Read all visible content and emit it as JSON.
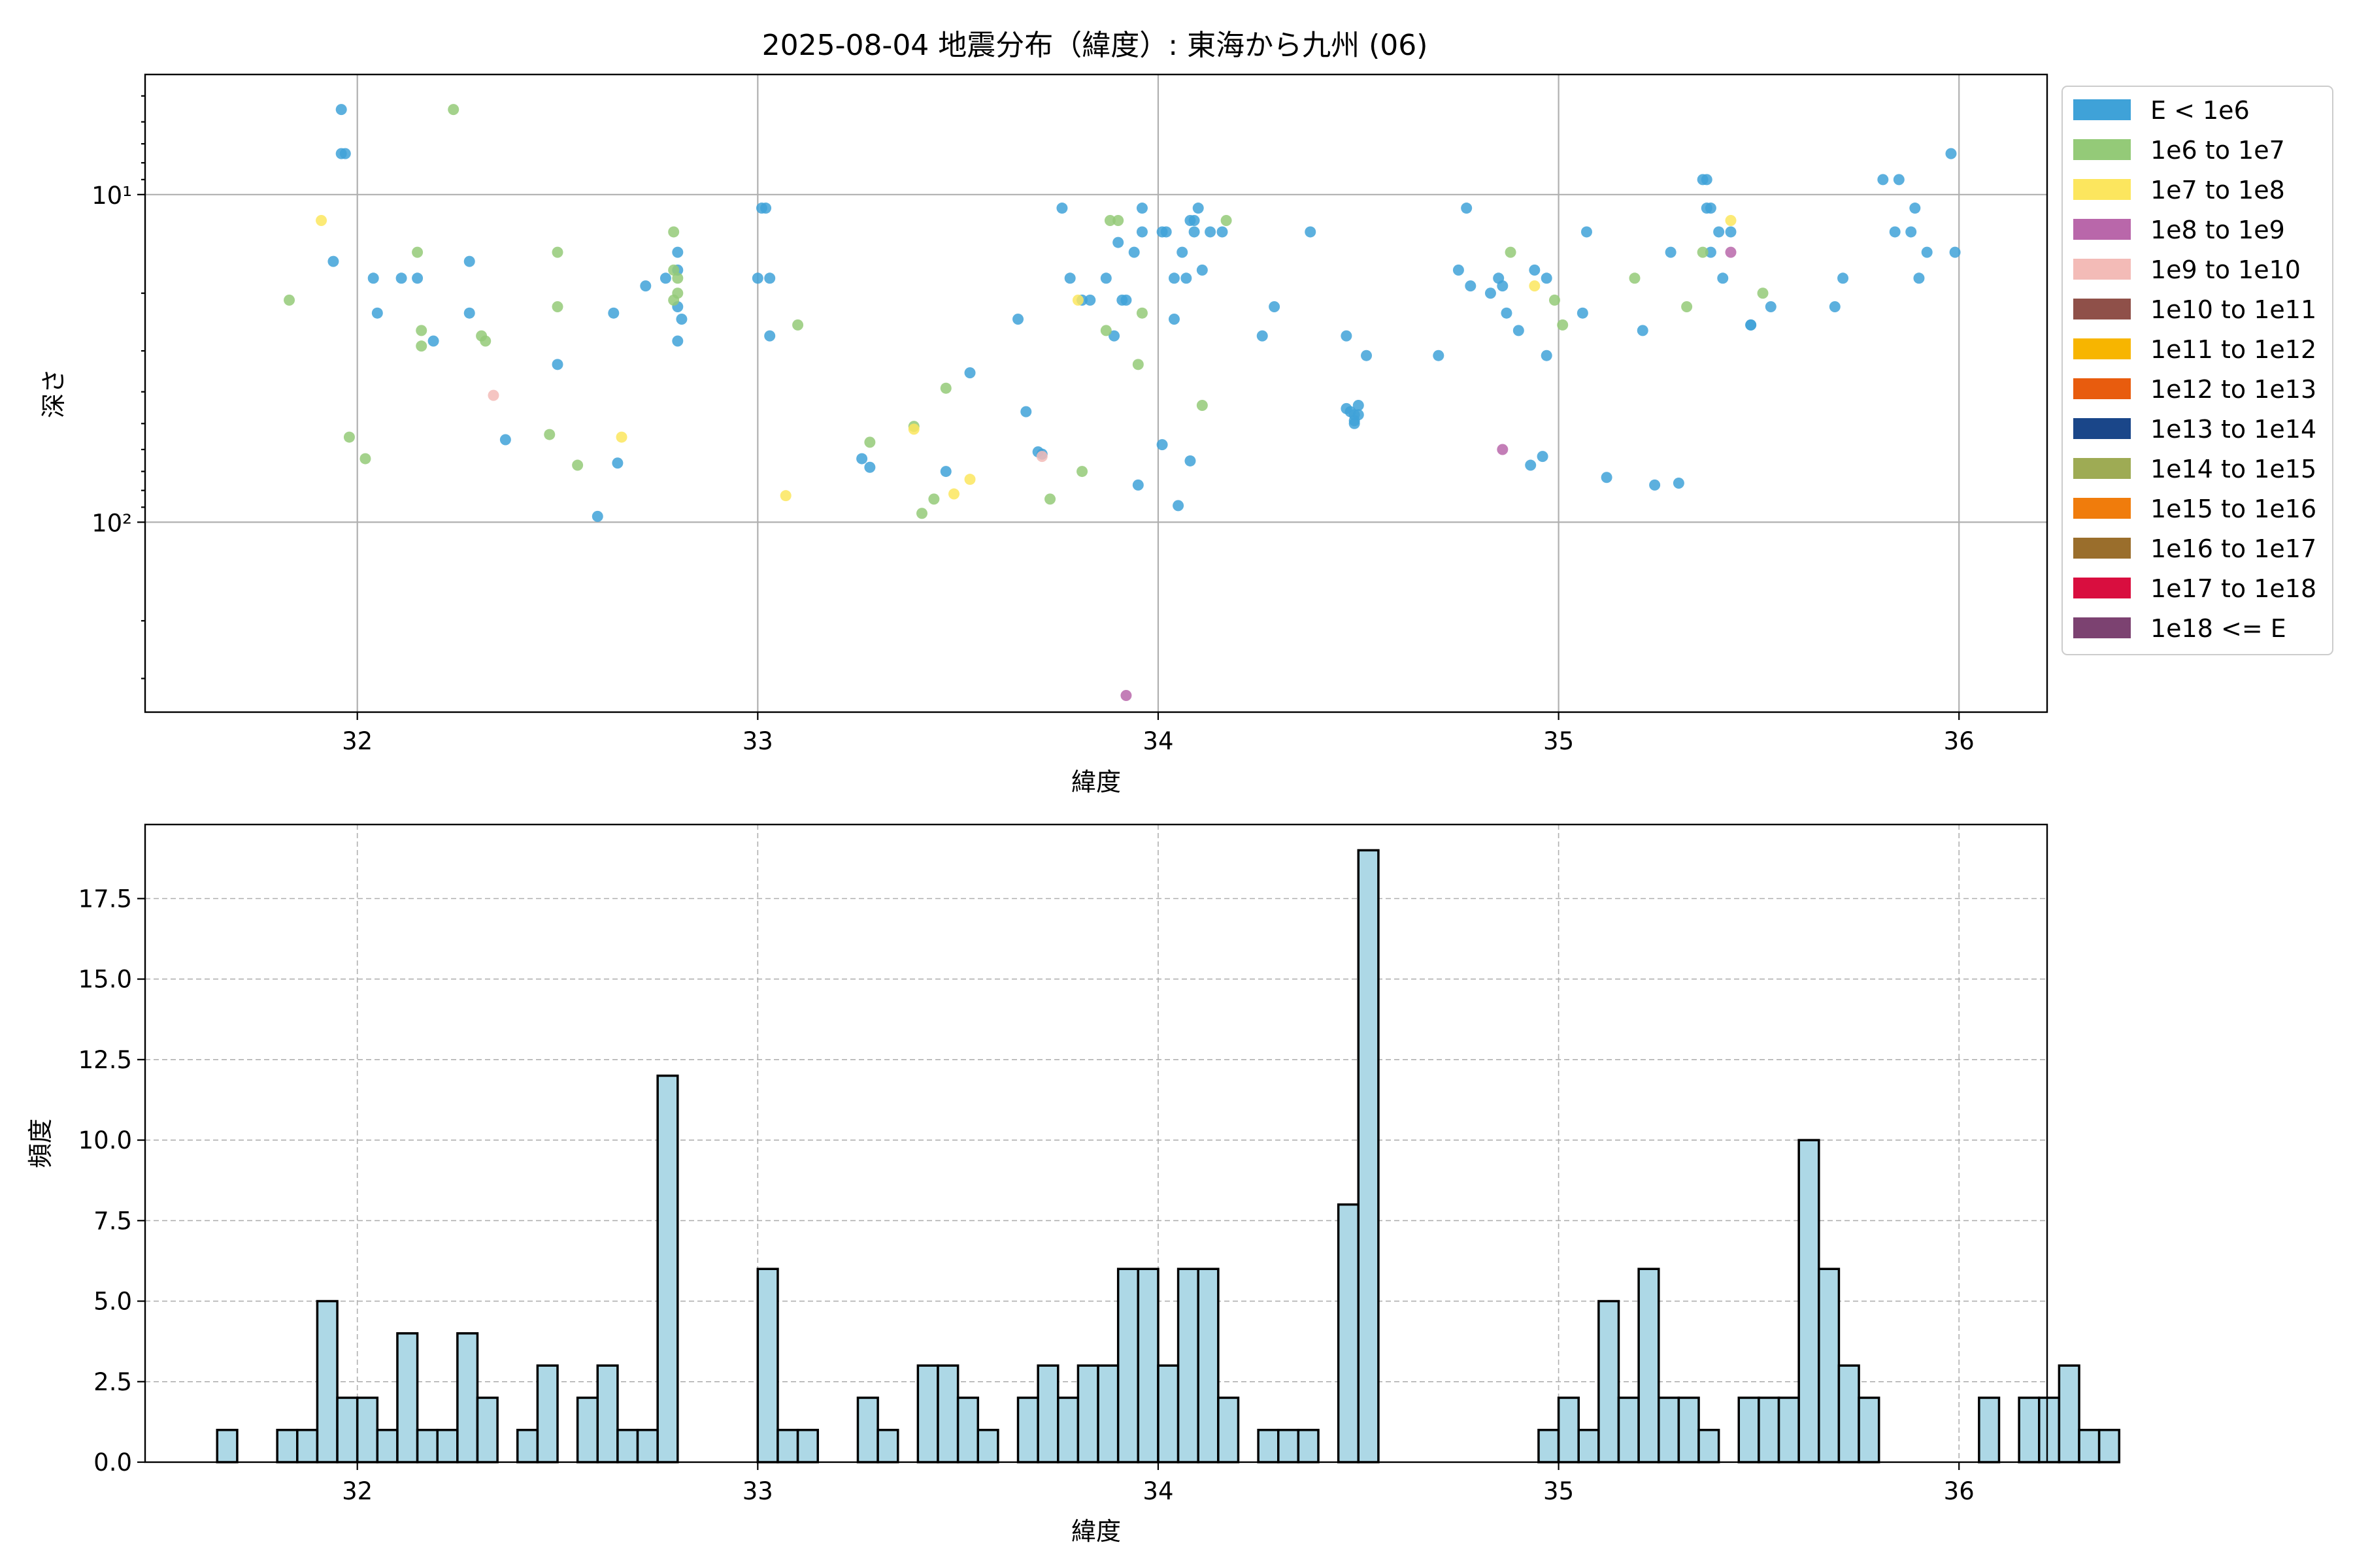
{
  "title": "2025-08-04 地震分布（緯度）: 東海から九州 (06)",
  "chart_data": [
    {
      "type": "scatter",
      "xlabel": "緯度",
      "ylabel": "深さ",
      "xlim": [
        31.47,
        36.22
      ],
      "xticks": [
        32,
        33,
        34,
        35,
        36
      ],
      "y_scale": "log",
      "y_inverted": true,
      "ylim": [
        4.3,
        380
      ],
      "yticks": [
        {
          "value": 10,
          "label": "10¹"
        },
        {
          "value": 100,
          "label": "10²"
        }
      ],
      "grid": true,
      "legend_placement": "upper-right-outside",
      "legend": [
        {
          "label": "E < 1e6",
          "color": "#3fa2d8"
        },
        {
          "label": "1e6 to 1e7",
          "color": "#94ca78"
        },
        {
          "label": "1e7 to 1e8",
          "color": "#fce65e"
        },
        {
          "label": "1e8 to 1e9",
          "color": "#b967aa"
        },
        {
          "label": "1e9 to 1e10",
          "color": "#f3bbb7"
        },
        {
          "label": "1e10 to 1e11",
          "color": "#8f5049"
        },
        {
          "label": "1e11 to 1e12",
          "color": "#f7b500"
        },
        {
          "label": "1e12 to 1e13",
          "color": "#e85c0e"
        },
        {
          "label": "1e13 to 1e14",
          "color": "#1a4689"
        },
        {
          "label": "1e14 to 1e15",
          "color": "#9eab54"
        },
        {
          "label": "1e15 to 1e16",
          "color": "#f07c0c"
        },
        {
          "label": "1e16 to 1e17",
          "color": "#9a6e2c"
        },
        {
          "label": "1e17 to 1e18",
          "color": "#d90e3f"
        },
        {
          "label": "1e18 <= E",
          "color": "#7c4271"
        }
      ],
      "points": [
        [
          31.96,
          5.5,
          0
        ],
        [
          31.96,
          7.5,
          0
        ],
        [
          31.97,
          7.5,
          0
        ],
        [
          31.94,
          16,
          0
        ],
        [
          32.04,
          18,
          0
        ],
        [
          32.05,
          23,
          0
        ],
        [
          32.11,
          18,
          0
        ],
        [
          32.15,
          18,
          0
        ],
        [
          32.19,
          28,
          0
        ],
        [
          32.28,
          16,
          0
        ],
        [
          32.28,
          23,
          0
        ],
        [
          32.37,
          56,
          0
        ],
        [
          32.5,
          33,
          0
        ],
        [
          32.6,
          96,
          0
        ],
        [
          32.64,
          23,
          0
        ],
        [
          32.65,
          66,
          0
        ],
        [
          32.72,
          19,
          0
        ],
        [
          32.77,
          18,
          0
        ],
        [
          32.8,
          15,
          0
        ],
        [
          32.8,
          17,
          0
        ],
        [
          32.8,
          22,
          0
        ],
        [
          32.81,
          24,
          0
        ],
        [
          32.8,
          28,
          0
        ],
        [
          33.0,
          18,
          0
        ],
        [
          33.01,
          11,
          0
        ],
        [
          33.02,
          11,
          0
        ],
        [
          33.03,
          18,
          0
        ],
        [
          33.03,
          27,
          0
        ],
        [
          33.26,
          64,
          0
        ],
        [
          33.28,
          68,
          0
        ],
        [
          33.47,
          70,
          0
        ],
        [
          33.53,
          35,
          0
        ],
        [
          33.65,
          24,
          0
        ],
        [
          33.67,
          46,
          0
        ],
        [
          33.7,
          61,
          0
        ],
        [
          33.71,
          62,
          0
        ],
        [
          33.76,
          11,
          0
        ],
        [
          33.78,
          18,
          0
        ],
        [
          33.81,
          21,
          0
        ],
        [
          33.83,
          21,
          0
        ],
        [
          33.87,
          18,
          0
        ],
        [
          33.89,
          27,
          0
        ],
        [
          33.9,
          14,
          0
        ],
        [
          33.91,
          21,
          0
        ],
        [
          33.92,
          21,
          0
        ],
        [
          33.94,
          15,
          0
        ],
        [
          33.95,
          77,
          0
        ],
        [
          33.96,
          11,
          0
        ],
        [
          33.96,
          13,
          0
        ],
        [
          34.01,
          13,
          0
        ],
        [
          34.02,
          13,
          0
        ],
        [
          34.01,
          58,
          0
        ],
        [
          34.04,
          18,
          0
        ],
        [
          34.04,
          24,
          0
        ],
        [
          34.05,
          89,
          0
        ],
        [
          34.06,
          15,
          0
        ],
        [
          34.07,
          18,
          0
        ],
        [
          34.08,
          12,
          0
        ],
        [
          34.09,
          12,
          0
        ],
        [
          34.08,
          65,
          0
        ],
        [
          34.09,
          13,
          0
        ],
        [
          34.1,
          11,
          0
        ],
        [
          34.11,
          17,
          0
        ],
        [
          34.13,
          13,
          0
        ],
        [
          34.16,
          13,
          0
        ],
        [
          34.26,
          27,
          0
        ],
        [
          34.29,
          22,
          0
        ],
        [
          34.38,
          13,
          0
        ],
        [
          34.47,
          27,
          0
        ],
        [
          34.47,
          45,
          0
        ],
        [
          34.48,
          46,
          0
        ],
        [
          34.49,
          47,
          0
        ],
        [
          34.49,
          49,
          0
        ],
        [
          34.49,
          50,
          0
        ],
        [
          34.5,
          44,
          0
        ],
        [
          34.5,
          47,
          0
        ],
        [
          34.52,
          31,
          0
        ],
        [
          34.7,
          31,
          0
        ],
        [
          34.75,
          17,
          0
        ],
        [
          34.77,
          11,
          0
        ],
        [
          34.78,
          19,
          0
        ],
        [
          34.83,
          20,
          0
        ],
        [
          34.85,
          18,
          0
        ],
        [
          34.86,
          19,
          0
        ],
        [
          34.87,
          23,
          0
        ],
        [
          34.9,
          26,
          0
        ],
        [
          34.93,
          67,
          0
        ],
        [
          34.94,
          17,
          0
        ],
        [
          34.96,
          63,
          0
        ],
        [
          34.97,
          18,
          0
        ],
        [
          34.97,
          31,
          0
        ],
        [
          35.06,
          23,
          0
        ],
        [
          35.07,
          13,
          0
        ],
        [
          35.12,
          73,
          0
        ],
        [
          35.21,
          26,
          0
        ],
        [
          35.24,
          77,
          0
        ],
        [
          35.28,
          15,
          0
        ],
        [
          35.3,
          76,
          0
        ],
        [
          35.36,
          9,
          0
        ],
        [
          35.37,
          9,
          0
        ],
        [
          35.37,
          11,
          0
        ],
        [
          35.38,
          11,
          0
        ],
        [
          35.38,
          15,
          0
        ],
        [
          35.4,
          13,
          0
        ],
        [
          35.41,
          18,
          0
        ],
        [
          35.43,
          13,
          0
        ],
        [
          35.48,
          25,
          0
        ],
        [
          35.48,
          25,
          0
        ],
        [
          35.53,
          22,
          0
        ],
        [
          35.69,
          22,
          0
        ],
        [
          35.71,
          18,
          0
        ],
        [
          35.81,
          9,
          0
        ],
        [
          35.84,
          13,
          0
        ],
        [
          35.85,
          9,
          0
        ],
        [
          35.88,
          13,
          0
        ],
        [
          35.89,
          11,
          0
        ],
        [
          35.9,
          18,
          0
        ],
        [
          35.92,
          15,
          0
        ],
        [
          35.98,
          7.5,
          0
        ],
        [
          35.99,
          15,
          0
        ],
        [
          31.83,
          21,
          1
        ],
        [
          31.98,
          55,
          1
        ],
        [
          32.02,
          64,
          1
        ],
        [
          32.15,
          15,
          1
        ],
        [
          32.16,
          26,
          1
        ],
        [
          32.16,
          29,
          1
        ],
        [
          32.31,
          27,
          1
        ],
        [
          32.32,
          28,
          1
        ],
        [
          32.48,
          54,
          1
        ],
        [
          32.5,
          15,
          1
        ],
        [
          32.5,
          22,
          1
        ],
        [
          32.55,
          67,
          1
        ],
        [
          32.24,
          5.5,
          1
        ],
        [
          32.79,
          13,
          1
        ],
        [
          32.79,
          17,
          1
        ],
        [
          32.8,
          20,
          1
        ],
        [
          32.8,
          18,
          1
        ],
        [
          32.79,
          21,
          1
        ],
        [
          33.1,
          25,
          1
        ],
        [
          33.28,
          57,
          1
        ],
        [
          33.39,
          51,
          1
        ],
        [
          33.41,
          94,
          1
        ],
        [
          33.44,
          85,
          1
        ],
        [
          33.47,
          39,
          1
        ],
        [
          33.73,
          85,
          1
        ],
        [
          33.81,
          70,
          1
        ],
        [
          33.87,
          26,
          1
        ],
        [
          33.88,
          12,
          1
        ],
        [
          33.9,
          12,
          1
        ],
        [
          33.95,
          33,
          1
        ],
        [
          33.96,
          23,
          1
        ],
        [
          34.11,
          44,
          1
        ],
        [
          34.17,
          12,
          1
        ],
        [
          34.88,
          15,
          1
        ],
        [
          34.99,
          21,
          1
        ],
        [
          35.01,
          25,
          1
        ],
        [
          35.19,
          18,
          1
        ],
        [
          35.32,
          22,
          1
        ],
        [
          35.36,
          15,
          1
        ],
        [
          35.51,
          20,
          1
        ],
        [
          31.91,
          12,
          2
        ],
        [
          32.66,
          55,
          2
        ],
        [
          33.07,
          83,
          2
        ],
        [
          33.39,
          52,
          2
        ],
        [
          33.49,
          82,
          2
        ],
        [
          33.53,
          74,
          2
        ],
        [
          33.8,
          21,
          2
        ],
        [
          34.94,
          19,
          2
        ],
        [
          35.43,
          12,
          2
        ],
        [
          34.86,
          60,
          3
        ],
        [
          35.43,
          15,
          3
        ],
        [
          33.92,
          338,
          3
        ],
        [
          32.34,
          41,
          4
        ],
        [
          33.71,
          63,
          4
        ]
      ]
    },
    {
      "type": "bar",
      "xlabel": "緯度",
      "ylabel": "頻度",
      "xlim": [
        31.47,
        36.22
      ],
      "xticks": [
        32,
        33,
        34,
        35,
        36
      ],
      "ylim": [
        0,
        19.8
      ],
      "yticks": [
        0,
        2.5,
        5,
        7.5,
        10,
        12.5,
        15,
        17.5
      ],
      "ytick_labels": [
        "0.0",
        "2.5",
        "5.0",
        "7.5",
        "10.0",
        "12.5",
        "15.0",
        "17.5"
      ],
      "grid": true,
      "bar_color": "#add8e6",
      "bin_start": 31.65,
      "bin_width": 0.05,
      "counts": [
        1,
        0,
        0,
        1,
        1,
        5,
        2,
        2,
        1,
        4,
        1,
        1,
        4,
        2,
        0,
        1,
        3,
        0,
        2,
        3,
        1,
        1,
        12,
        0,
        0,
        0,
        0,
        6,
        1,
        1,
        0,
        0,
        2,
        1,
        0,
        3,
        3,
        2,
        1,
        0,
        2,
        3,
        2,
        3,
        3,
        6,
        6,
        3,
        6,
        6,
        2,
        0,
        1,
        1,
        1,
        0,
        8,
        19,
        0,
        0,
        0,
        0,
        0,
        0,
        0,
        0,
        1,
        2,
        1,
        5,
        2,
        6,
        2,
        2,
        1,
        0,
        2,
        2,
        2,
        10,
        6,
        3,
        2,
        0,
        0,
        0,
        0,
        0,
        2,
        0,
        2,
        2,
        3,
        1,
        1
      ]
    }
  ]
}
